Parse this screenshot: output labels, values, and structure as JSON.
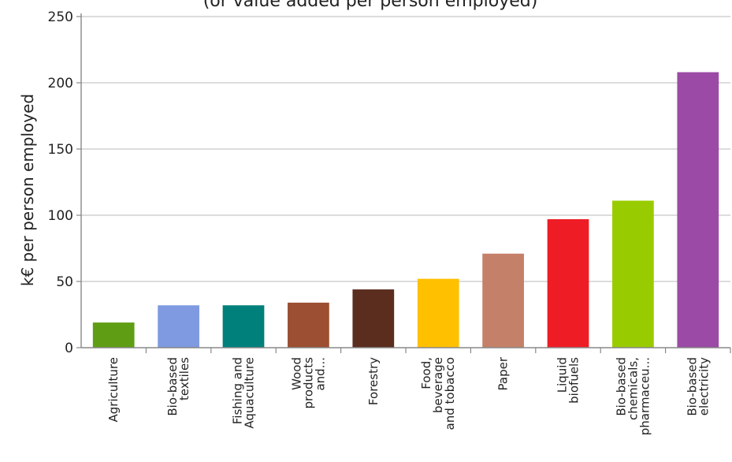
{
  "chart_data": {
    "type": "bar",
    "title": "(or value added per person employed)",
    "xlabel": "",
    "ylabel": "k€ per person employed",
    "ylim": [
      0,
      250
    ],
    "yticks": [
      0,
      50,
      100,
      150,
      200,
      250
    ],
    "grid": true,
    "legend": "none",
    "categories": [
      "Agriculture",
      "Bio-based textiles",
      "Fishing and Aquaculture",
      "Wood products and...",
      "Forestry",
      "Food, beverage and tobacco",
      "Paper",
      "Liquid biofuels",
      "Bio-based chemicals, pharmaceu...",
      "Bio-based electricity"
    ],
    "category_lines": [
      [
        "Agriculture"
      ],
      [
        "Bio-based",
        "textiles"
      ],
      [
        "Fishing and",
        "Aquaculture"
      ],
      [
        "Wood",
        "products",
        "and..."
      ],
      [
        "Forestry"
      ],
      [
        "Food,",
        "beverage",
        "and tobacco"
      ],
      [
        "Paper"
      ],
      [
        "Liquid",
        "biofuels"
      ],
      [
        "Bio-based",
        "chemicals,",
        "pharmaceu..."
      ],
      [
        "Bio-based",
        "electricity"
      ]
    ],
    "values": [
      19,
      32,
      32,
      34,
      44,
      52,
      71,
      97,
      111,
      208
    ],
    "colors": [
      "#5f9e14",
      "#7f9ae0",
      "#00807a",
      "#9c4f32",
      "#5b2d1e",
      "#ffc000",
      "#c48068",
      "#ee1c25",
      "#99cc00",
      "#9b4aa5"
    ]
  }
}
